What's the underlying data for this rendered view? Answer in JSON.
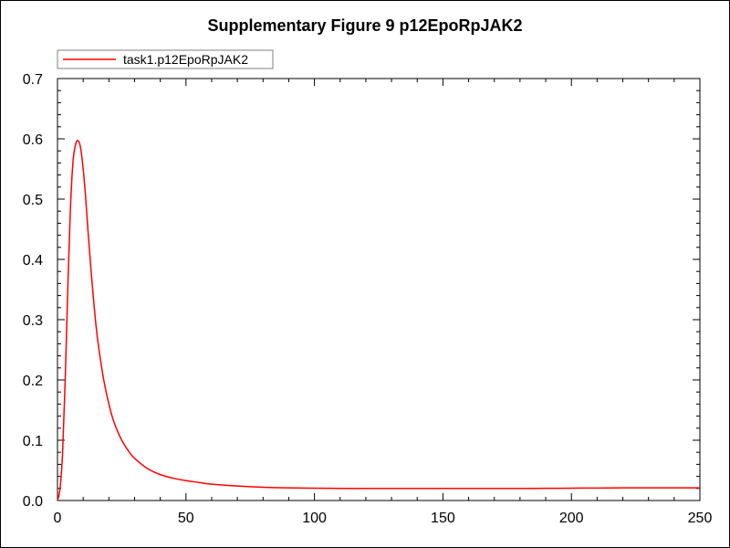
{
  "chart_data": {
    "type": "line",
    "title": "Supplementary Figure 9 p12EpoRpJAK2",
    "xlabel": "",
    "ylabel": "",
    "xlim": [
      0,
      250
    ],
    "ylim": [
      0.0,
      0.7
    ],
    "x_ticks": [
      "0",
      "50",
      "100",
      "150",
      "200",
      "250"
    ],
    "y_ticks": [
      "0.0",
      "0.1",
      "0.2",
      "0.3",
      "0.4",
      "0.5",
      "0.6",
      "0.7"
    ],
    "grid": false,
    "legend_position": "top-left",
    "series": [
      {
        "name": "task1.p12EpoRpJAK2",
        "color": "#ff0000",
        "x": [
          0,
          1,
          2,
          3,
          4,
          5,
          6,
          7,
          8,
          9,
          10,
          11,
          12,
          13,
          14,
          15,
          16,
          18,
          20,
          22,
          25,
          28,
          30,
          35,
          40,
          45,
          50,
          55,
          60,
          70,
          80,
          90,
          100,
          110,
          120,
          130,
          140,
          150,
          160,
          170,
          180,
          190,
          200,
          210,
          220,
          230,
          240,
          250
        ],
        "values": [
          0.0,
          0.02,
          0.08,
          0.2,
          0.35,
          0.48,
          0.56,
          0.59,
          0.597,
          0.585,
          0.55,
          0.5,
          0.44,
          0.385,
          0.335,
          0.29,
          0.255,
          0.2,
          0.16,
          0.13,
          0.1,
          0.08,
          0.07,
          0.053,
          0.043,
          0.037,
          0.033,
          0.03,
          0.027,
          0.024,
          0.022,
          0.021,
          0.0205,
          0.02,
          0.02,
          0.02,
          0.02,
          0.02,
          0.02,
          0.02,
          0.02,
          0.0202,
          0.0205,
          0.0207,
          0.021,
          0.021,
          0.021,
          0.021
        ]
      }
    ]
  }
}
